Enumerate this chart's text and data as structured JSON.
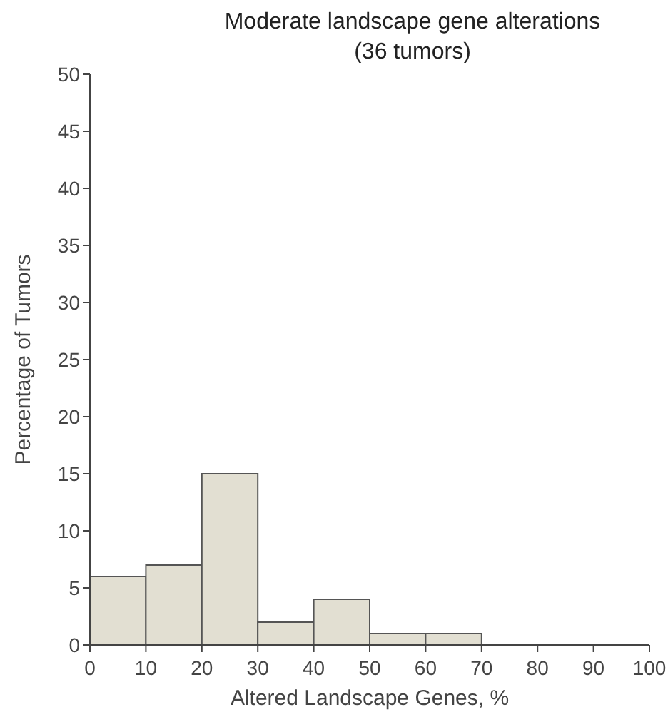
{
  "chart_data": {
    "type": "histogram",
    "title": "Moderate landscape gene alterations\n(36 tumors)",
    "xlabel": "Altered Landscape Genes, %",
    "ylabel": "Percentage of Tumors",
    "bins": [
      0,
      10,
      20,
      30,
      40,
      50,
      60,
      70
    ],
    "values": [
      6,
      7,
      15,
      2,
      4,
      1,
      1
    ],
    "color": "#e2dfd2",
    "xlim": [
      0,
      100
    ],
    "xticks": [
      0,
      10,
      20,
      30,
      40,
      50,
      60,
      70,
      80,
      90,
      100
    ],
    "ylim": [
      0,
      50
    ],
    "yticks": [
      0,
      5,
      10,
      15,
      20,
      25,
      30,
      35,
      40,
      45,
      50
    ],
    "grid": false
  }
}
